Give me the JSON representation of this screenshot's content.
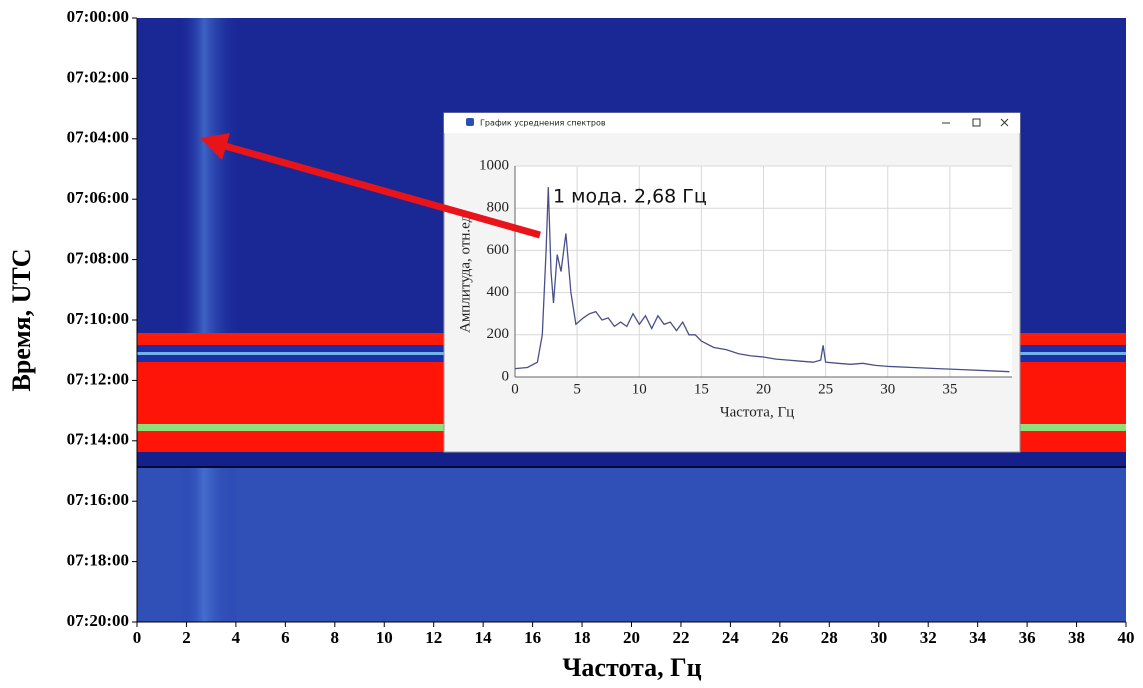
{
  "chart_data": [
    {
      "type": "spectrogram",
      "xlabel": "Частота, Гц",
      "ylabel": "Время, UTC",
      "xlim": [
        0,
        40
      ],
      "xticks": [
        0,
        2,
        4,
        6,
        8,
        10,
        12,
        14,
        16,
        18,
        20,
        22,
        24,
        26,
        28,
        30,
        32,
        34,
        36,
        38,
        40
      ],
      "ylim": [
        "07:00:00",
        "07:20:00"
      ],
      "yticks": [
        "07:00:00",
        "07:02:00",
        "07:04:00",
        "07:06:00",
        "07:08:00",
        "07:10:00",
        "07:12:00",
        "07:14:00",
        "07:16:00",
        "07:18:00",
        "07:20:00"
      ]
    },
    {
      "type": "line",
      "title": "График усреднения спектров",
      "xlabel": "Частота, Гц",
      "ylabel": "Амплитуда, отн.ед.",
      "annotation": "1 мода. 2,68 Гц",
      "xlim": [
        0,
        40
      ],
      "xticks": [
        0,
        5,
        10,
        15,
        20,
        25,
        30,
        35
      ],
      "ylim": [
        0,
        1000
      ],
      "yticks": [
        0,
        200,
        400,
        600,
        800,
        1000
      ],
      "grid": true,
      "color": "#4a4f8a",
      "x": [
        0,
        1,
        1.8,
        2.2,
        2.5,
        2.68,
        2.9,
        3.1,
        3.4,
        3.7,
        4.1,
        4.5,
        4.9,
        5.5,
        6,
        6.5,
        7,
        7.5,
        8,
        8.5,
        9,
        9.5,
        10,
        10.5,
        11,
        11.5,
        12,
        12.5,
        13,
        13.5,
        14,
        14.5,
        15,
        16,
        17,
        18,
        19,
        20,
        21,
        22,
        23,
        24,
        24.6,
        24.8,
        25,
        26,
        27,
        28,
        29,
        30,
        32,
        34,
        36,
        38,
        39.8
      ],
      "values": [
        40,
        45,
        70,
        200,
        600,
        900,
        500,
        350,
        580,
        500,
        680,
        400,
        250,
        280,
        300,
        310,
        270,
        280,
        240,
        260,
        240,
        300,
        250,
        290,
        230,
        290,
        250,
        260,
        220,
        260,
        200,
        200,
        170,
        140,
        130,
        110,
        100,
        95,
        85,
        80,
        75,
        70,
        80,
        150,
        70,
        65,
        60,
        65,
        55,
        50,
        45,
        40,
        35,
        30,
        25
      ]
    }
  ]
}
